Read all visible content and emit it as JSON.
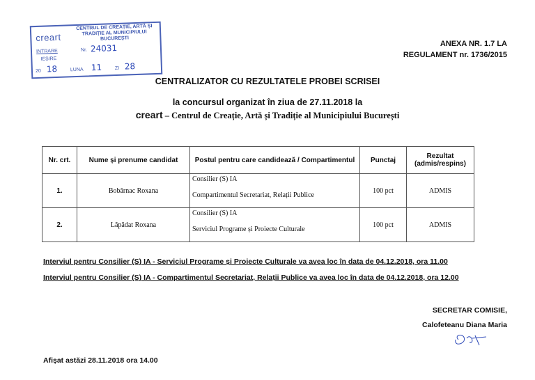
{
  "stamp": {
    "logo": "creart",
    "org": "CENTRUL DE CREAȚIE, ARTĂ ȘI TRADIȚIE AL MUNICIPIULUI BUCUREȘTI",
    "intrare": "INTRARE",
    "iesire": "IEȘIRE",
    "nr_label": "Nr.",
    "nr": "24031",
    "year_prefix": "20",
    "year": "18",
    "luna_label": "LUNA",
    "luna": "11",
    "zi_label": "ZI",
    "zi": "28"
  },
  "annex": {
    "line1": "ANEXA NR. 1.7 LA",
    "line2": "REGULAMENT nr. 1736/2015"
  },
  "title": "CENTRALIZATOR CU REZULTATELE PROBEI SCRISEI",
  "subtitle": "la concursul organizat în  ziua de 27.11.2018 la",
  "org_brand": "creart",
  "org_name": " – Centrul de Creație, Artă și Tradiție al Municipiului București",
  "table": {
    "headers": [
      "Nr. crt.",
      "Nume și prenume candidat",
      "Postul pentru care candidează / Compartimentul",
      "Punctaj",
      "Rezultat (admis/respins)"
    ],
    "rows": [
      {
        "nr": "1.",
        "name": "Bobârnac Roxana",
        "post": "Consilier (S) IA",
        "dept": "Compartimentul Secretariat, Relații Publice",
        "score": "100 pct",
        "result": "ADMIS"
      },
      {
        "nr": "2.",
        "name": "Lăpădat Roxana",
        "post": "Consilier (S) IA",
        "dept": "Serviciul Programe și Proiecte Culturale",
        "score": "100 pct",
        "result": "ADMIS"
      }
    ]
  },
  "notes": [
    "Interviul pentru Consilier (S) IA - Serviciul Programe și Proiecte Culturale va avea loc în data de 04.12.2018, ora 11.00",
    "Interviul pentru Consilier (S) IA - Compartimentul Secretariat, Relații Publice va avea loc în data de 04.12.2018, ora 12.00"
  ],
  "secretary": {
    "title": "SECRETAR COMISIE,",
    "name": "Calofeteanu Diana Maria"
  },
  "posted": "Afișat astăzi 28.11.2018  ora 14.00"
}
